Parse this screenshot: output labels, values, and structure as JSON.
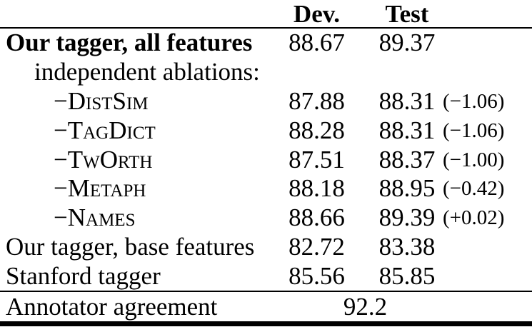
{
  "table": {
    "header": {
      "label": "",
      "dev": "Dev.",
      "test": "Test"
    },
    "rows": [
      {
        "label": "Our tagger, all features",
        "dev": "88.67",
        "test": "89.37",
        "delta": "",
        "style": "bold",
        "indent": 0
      },
      {
        "label": "independent ablations:",
        "dev": "",
        "test": "",
        "delta": "",
        "style": "section",
        "indent": 1
      },
      {
        "label": "−DistSim",
        "dev": "87.88",
        "test": "88.31",
        "delta": "(−1.06)",
        "style": "smallcaps",
        "indent": 2
      },
      {
        "label": "−TagDict",
        "dev": "88.28",
        "test": "88.31",
        "delta": "(−1.06)",
        "style": "smallcaps",
        "indent": 2
      },
      {
        "label": "−TwOrth",
        "dev": "87.51",
        "test": "88.37",
        "delta": "(−1.00)",
        "style": "smallcaps",
        "indent": 2
      },
      {
        "label": "−Metaph",
        "dev": "88.18",
        "test": "88.95",
        "delta": "(−0.42)",
        "style": "smallcaps",
        "indent": 2
      },
      {
        "label": "−Names",
        "dev": "88.66",
        "test": "89.39",
        "delta": "(+0.02)",
        "style": "smallcaps",
        "indent": 2
      },
      {
        "label": "Our tagger, base features",
        "dev": "82.72",
        "test": "83.38",
        "delta": "",
        "style": "plain",
        "indent": 0
      },
      {
        "label": "Stanford tagger",
        "dev": "85.56",
        "test": "85.85",
        "delta": "",
        "style": "plain",
        "indent": 0
      }
    ],
    "footer": {
      "label": "Annotator agreement",
      "value": "92.2"
    }
  }
}
